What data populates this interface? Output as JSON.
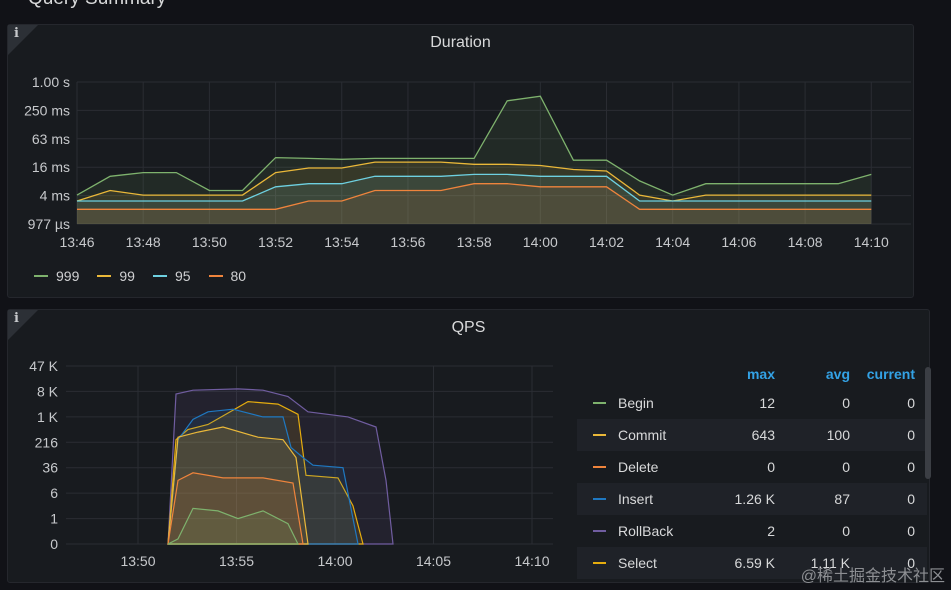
{
  "row_title": "Query Summary",
  "duration_panel": {
    "title": "Duration",
    "info_icon": "info-icon",
    "y_ticks": [
      "1.00 s",
      "250 ms",
      "63 ms",
      "16 ms",
      "4 ms",
      "977 µs"
    ],
    "x_ticks": [
      "13:46",
      "13:48",
      "13:50",
      "13:52",
      "13:54",
      "13:56",
      "13:58",
      "14:00",
      "14:02",
      "14:04",
      "14:06",
      "14:08",
      "14:10"
    ],
    "legend": [
      {
        "label": "999",
        "color": "#7eb26d"
      },
      {
        "label": "99",
        "color": "#eab839"
      },
      {
        "label": "95",
        "color": "#6ed0e0"
      },
      {
        "label": "80",
        "color": "#ef843c"
      }
    ]
  },
  "qps_panel": {
    "title": "QPS",
    "info_icon": "info-icon",
    "y_ticks": [
      "47 K",
      "8 K",
      "1 K",
      "216",
      "36",
      "6",
      "1",
      "0"
    ],
    "x_ticks": [
      "13:50",
      "13:55",
      "14:00",
      "14:05",
      "14:10"
    ],
    "table_headers": {
      "max": "max",
      "avg": "avg",
      "current": "current"
    },
    "table_rows": [
      {
        "name": "Begin",
        "color": "#7eb26d",
        "max": "12",
        "avg": "0",
        "current": "0"
      },
      {
        "name": "Commit",
        "color": "#eab839",
        "max": "643",
        "avg": "100",
        "current": "0"
      },
      {
        "name": "Delete",
        "color": "#ef843c",
        "max": "0",
        "avg": "0",
        "current": "0"
      },
      {
        "name": "Insert",
        "color": "#1f78c1",
        "max": "1.26 K",
        "avg": "87",
        "current": "0"
      },
      {
        "name": "RollBack",
        "color": "#705da0",
        "max": "2",
        "avg": "0",
        "current": "0"
      },
      {
        "name": "Select",
        "color": "#e5ac0e",
        "max": "6.59 K",
        "avg": "1.11 K",
        "current": "0"
      }
    ]
  },
  "chart_data": [
    {
      "type": "line",
      "title": "Duration",
      "y_scale": "log",
      "y_ticks": [
        "1.00 s",
        "250 ms",
        "63 ms",
        "16 ms",
        "4 ms",
        "977 µs"
      ],
      "x": [
        "13:46",
        "13:47",
        "13:48",
        "13:49",
        "13:50",
        "13:51",
        "13:52",
        "13:53",
        "13:54",
        "13:55",
        "13:56",
        "13:57",
        "13:58",
        "13:59",
        "14:00",
        "14:01",
        "14:02",
        "14:03",
        "14:04",
        "14:05",
        "14:06",
        "14:07",
        "14:08",
        "14:09",
        "14:10"
      ],
      "series": [
        {
          "name": "999",
          "values_ms": [
            4,
            10,
            12,
            12,
            5,
            5,
            25,
            24,
            23,
            24,
            24,
            24,
            24,
            400,
            500,
            22,
            22,
            8,
            4,
            7,
            7,
            7,
            7,
            7,
            11
          ]
        },
        {
          "name": "99",
          "values_ms": [
            3,
            5,
            4,
            4,
            4,
            4,
            12,
            15,
            15,
            20,
            20,
            20,
            18,
            18,
            17,
            14,
            13,
            4,
            3,
            4,
            4,
            4,
            4,
            4,
            4
          ]
        },
        {
          "name": "95",
          "values_ms": [
            3,
            3,
            3,
            3,
            3,
            3,
            6,
            7,
            7,
            10,
            10,
            10,
            11,
            11,
            10,
            10,
            10,
            3,
            3,
            3,
            3,
            3,
            3,
            3,
            3
          ]
        },
        {
          "name": "80",
          "values_ms": [
            2,
            2,
            2,
            2,
            2,
            2,
            2,
            3,
            3,
            5,
            5,
            5,
            7,
            7,
            6,
            6,
            6,
            2,
            2,
            2,
            2,
            2,
            2,
            2,
            2
          ]
        }
      ]
    },
    {
      "type": "area",
      "title": "QPS",
      "y_scale": "log",
      "y_ticks": [
        "47 K",
        "8 K",
        "1 K",
        "216",
        "36",
        "6",
        "1",
        "0"
      ],
      "x_ticks": [
        "13:50",
        "13:55",
        "14:00",
        "14:05",
        "14:10"
      ],
      "series": [
        {
          "name": "Begin",
          "max": "12",
          "avg": "0",
          "current": "0"
        },
        {
          "name": "Commit",
          "max": "643",
          "avg": "100",
          "current": "0"
        },
        {
          "name": "Delete",
          "max": "0",
          "avg": "0",
          "current": "0"
        },
        {
          "name": "Insert",
          "max": "1.26 K",
          "avg": "87",
          "current": "0"
        },
        {
          "name": "RollBack",
          "max": "2",
          "avg": "0",
          "current": "0"
        },
        {
          "name": "Select",
          "max": "6.59 K",
          "avg": "1.11 K",
          "current": "0"
        }
      ]
    }
  ],
  "watermark": "@稀土掘金技术社区"
}
